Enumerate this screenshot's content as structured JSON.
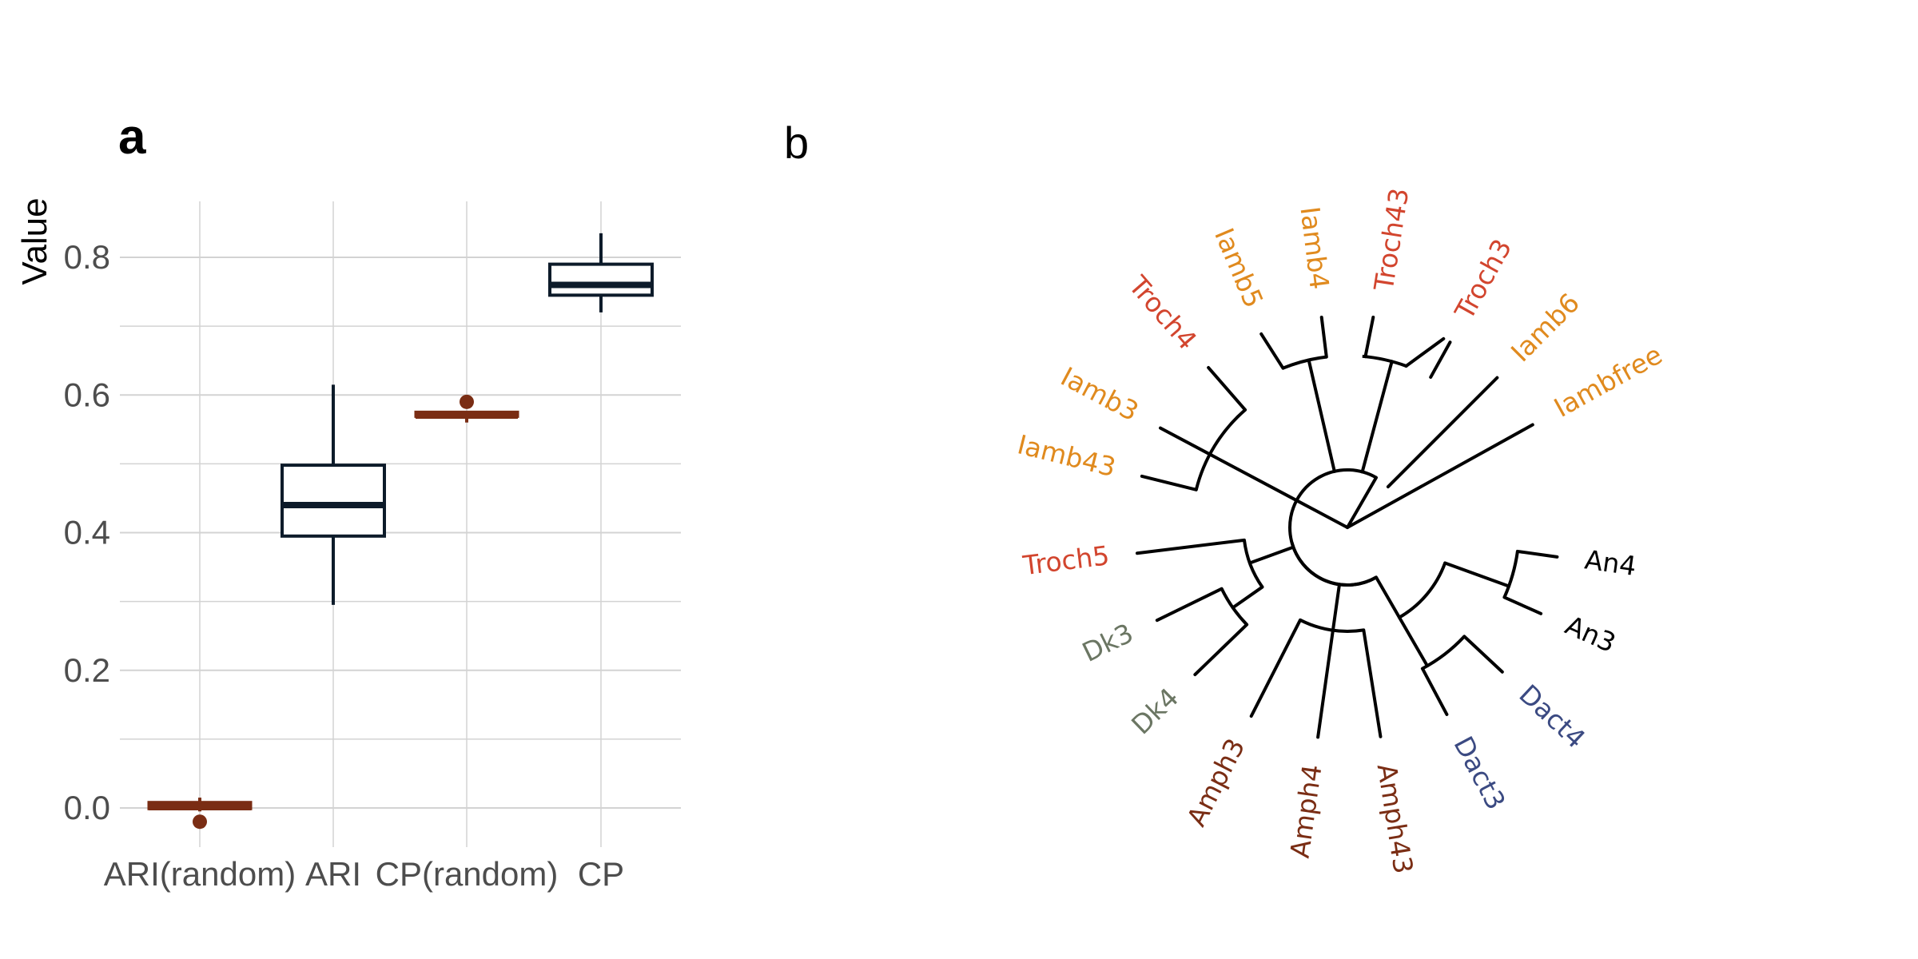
{
  "colors": {
    "random_box": "#7a2d14",
    "real_box": "#0d1b2a",
    "grid": "#d3d3d3",
    "tick_text": "#4d4d4d",
    "tree_line": "#000000"
  },
  "chart_data": [
    {
      "panel": "a",
      "type": "box",
      "title": "",
      "xlabel": "",
      "ylabel": "Value",
      "ylim": [
        -0.06,
        0.88
      ],
      "y_ticks": [
        "0.0",
        "0.2",
        "0.4",
        "0.6",
        "0.8"
      ],
      "y_tick_values": [
        0.0,
        0.2,
        0.4,
        0.6,
        0.8
      ],
      "grid": true,
      "categories": [
        "ARI(random)",
        "ARI",
        "CP(random)",
        "CP"
      ],
      "boxes": [
        {
          "category": "ARI(random)",
          "min": -0.005,
          "q1": -0.005,
          "median": 0.0,
          "q3": 0.005,
          "max": 0.015,
          "outliers": [
            -0.02
          ],
          "color": "#7a2d14"
        },
        {
          "category": "ARI",
          "min": 0.295,
          "q1": 0.395,
          "median": 0.44,
          "q3": 0.498,
          "max": 0.615,
          "outliers": [],
          "color": "#0d1b2a"
        },
        {
          "category": "CP(random)",
          "min": 0.56,
          "q1": 0.566,
          "median": 0.569,
          "q3": 0.572,
          "max": 0.575,
          "outliers": [
            0.59
          ],
          "color": "#7a2d14"
        },
        {
          "category": "CP",
          "min": 0.72,
          "q1": 0.745,
          "median": 0.76,
          "q3": 0.79,
          "max": 0.835,
          "outliers": [],
          "color": "#0d1b2a"
        }
      ]
    },
    {
      "panel": "b",
      "type": "dendrogram",
      "title": "",
      "leaves": [
        {
          "label": "Iambfree",
          "color": "#e08a1e"
        },
        {
          "label": "Iamb6",
          "color": "#e08a1e"
        },
        {
          "label": "Troch3",
          "color": "#d2452e"
        },
        {
          "label": "Troch43",
          "color": "#d2452e"
        },
        {
          "label": "Iamb4",
          "color": "#e08a1e"
        },
        {
          "label": "Iamb5",
          "color": "#e08a1e"
        },
        {
          "label": "Troch4",
          "color": "#d2452e"
        },
        {
          "label": "Iamb3",
          "color": "#e08a1e"
        },
        {
          "label": "Iamb43",
          "color": "#e08a1e"
        },
        {
          "label": "Troch5",
          "color": "#d2452e"
        },
        {
          "label": "Dk3",
          "color": "#6b7663"
        },
        {
          "label": "Dk4",
          "color": "#6b7663"
        },
        {
          "label": "Amph3",
          "color": "#7a2d14"
        },
        {
          "label": "Amph4",
          "color": "#7a2d14"
        },
        {
          "label": "Amph43",
          "color": "#7a2d14"
        },
        {
          "label": "Dact3",
          "color": "#3b4a82"
        },
        {
          "label": "Dact4",
          "color": "#3b4a82"
        },
        {
          "label": "An3",
          "color": "#000000"
        },
        {
          "label": "An4",
          "color": "#000000"
        }
      ]
    }
  ],
  "labels": {
    "panel_a": "a",
    "panel_b": "b"
  }
}
